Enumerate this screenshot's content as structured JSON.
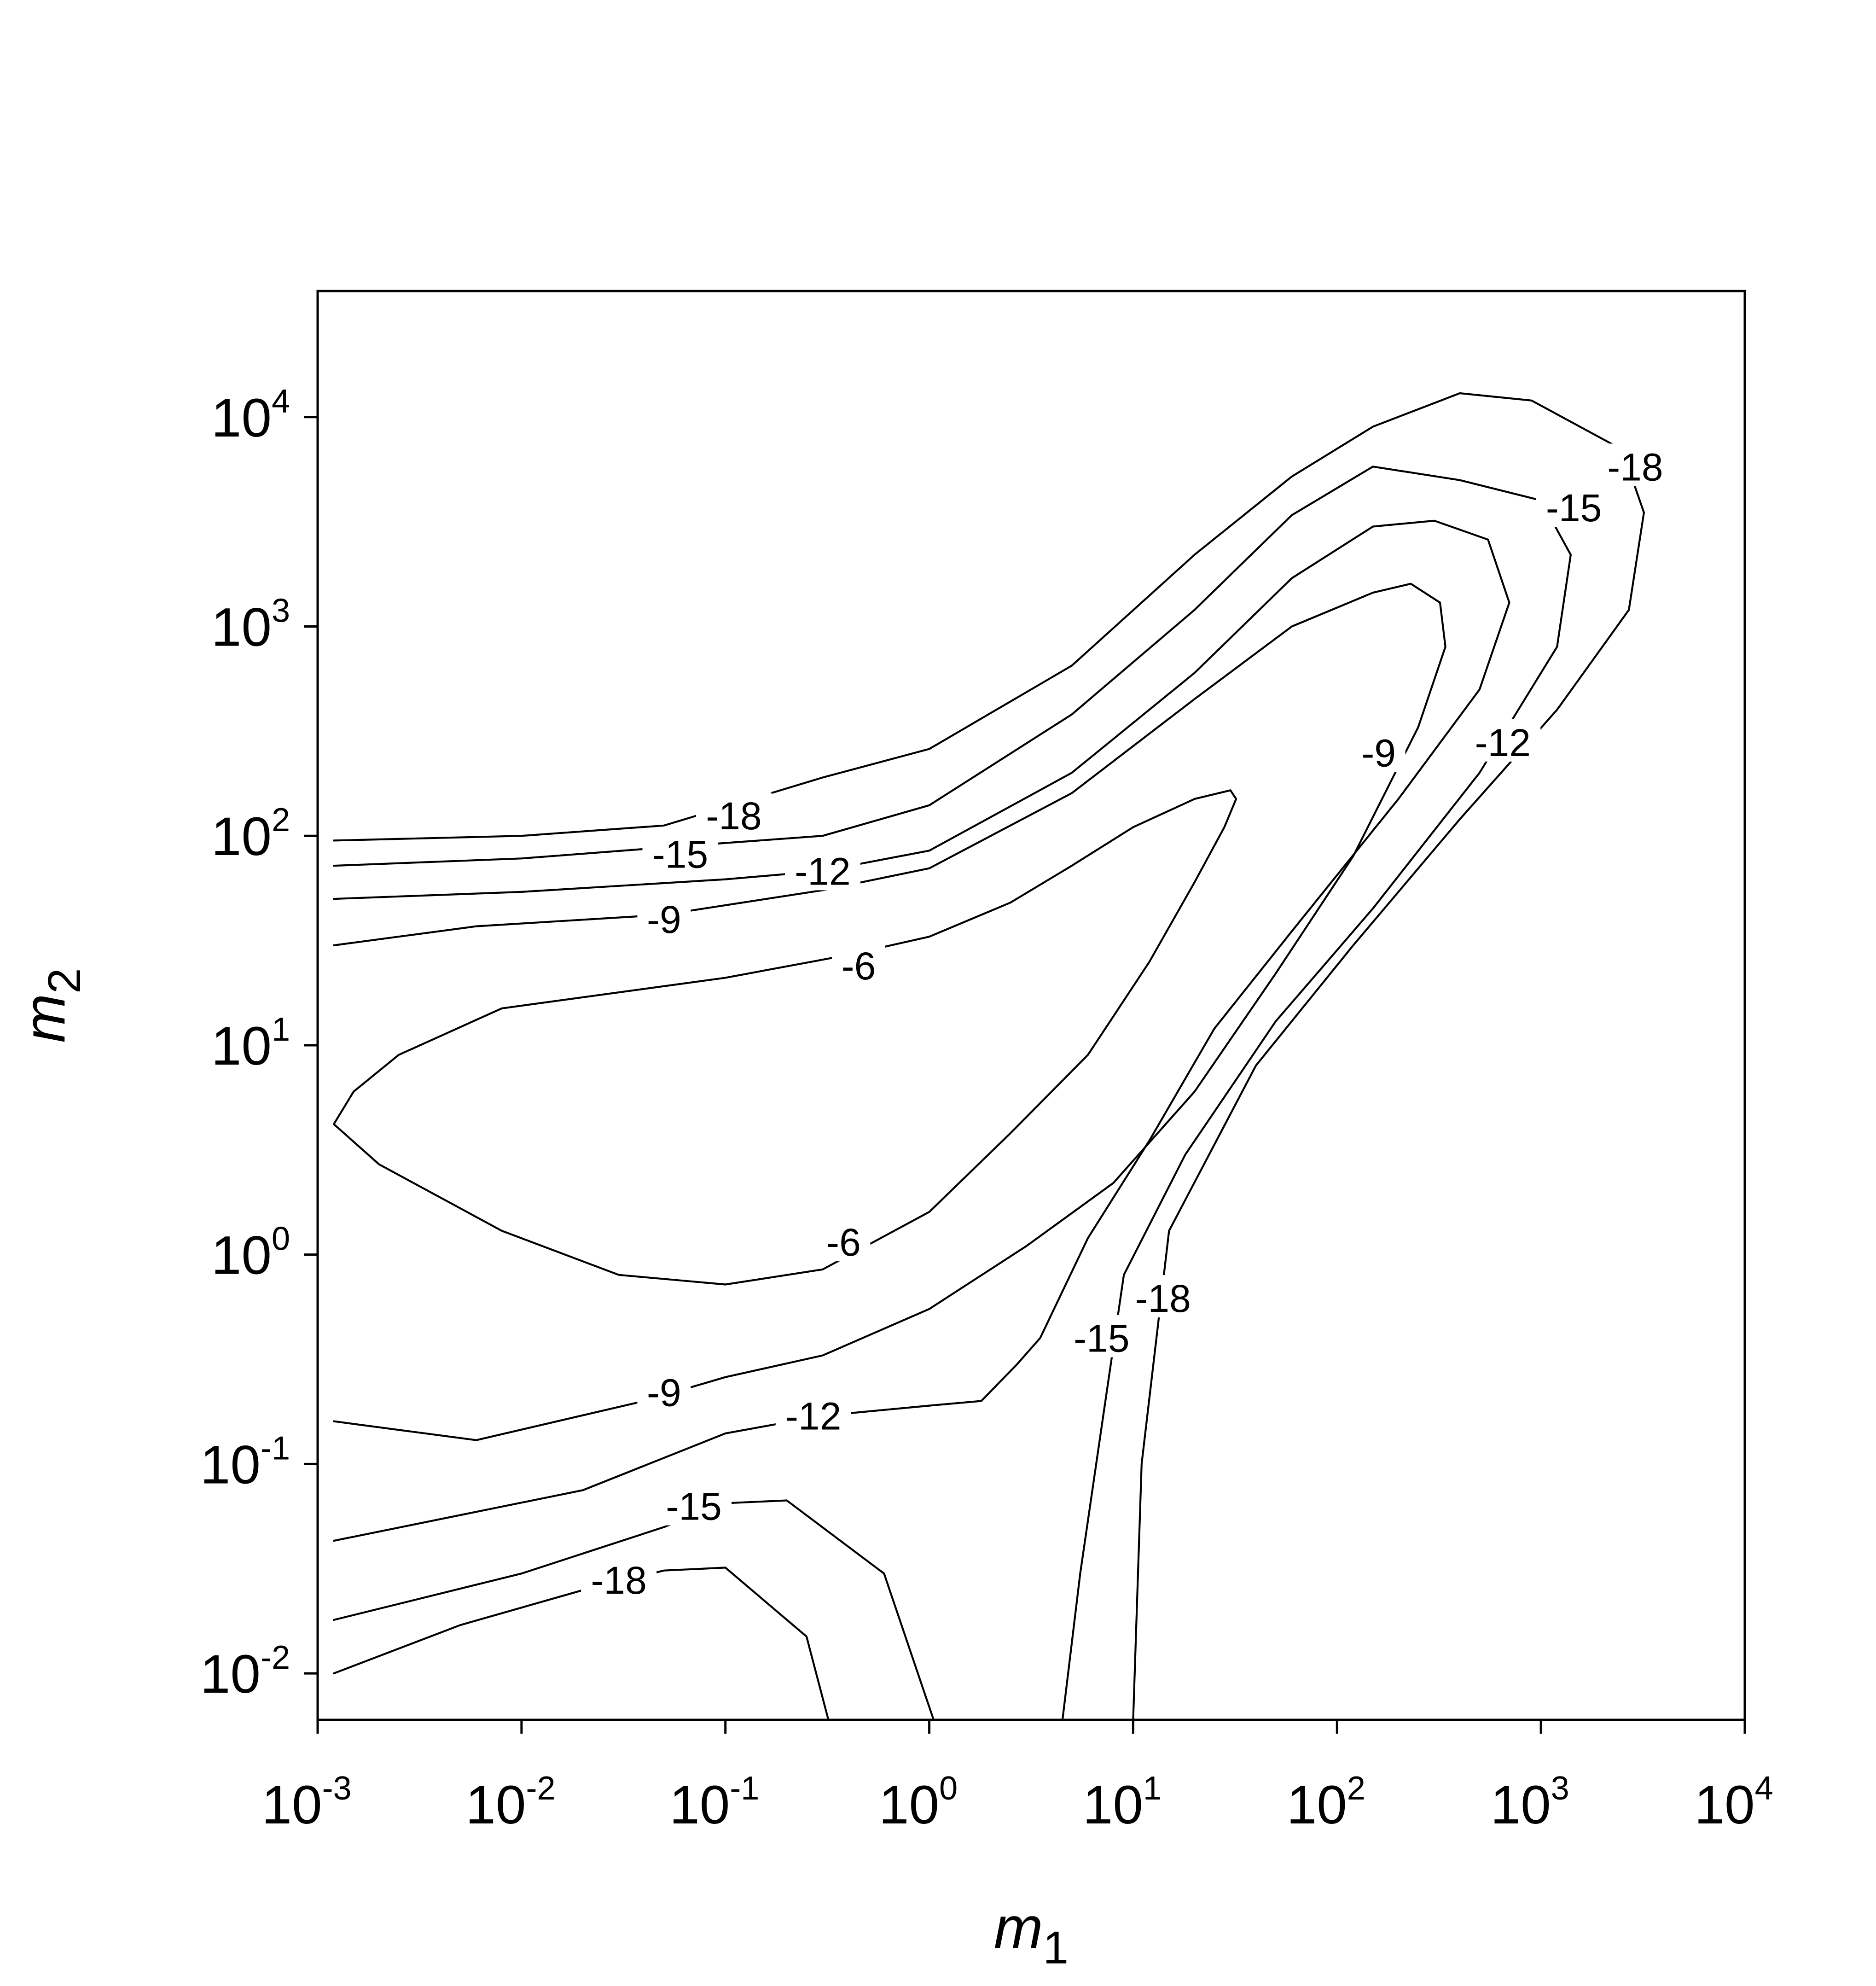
{
  "chart_data": {
    "type": "contour",
    "title": "",
    "xlabel": "m",
    "xlabel_sub": "1",
    "ylabel": "m",
    "ylabel_sub": "2",
    "xscale": "log",
    "yscale": "log",
    "xlim": [
      0.001,
      10000
    ],
    "ylim": [
      0.006,
      40000
    ],
    "grid": false,
    "xticks": [
      {
        "base": "10",
        "exp": "-3",
        "value": 0.001
      },
      {
        "base": "10",
        "exp": "-2",
        "value": 0.01
      },
      {
        "base": "10",
        "exp": "-1",
        "value": 0.1
      },
      {
        "base": "10",
        "exp": "0",
        "value": 1
      },
      {
        "base": "10",
        "exp": "1",
        "value": 10
      },
      {
        "base": "10",
        "exp": "2",
        "value": 100
      },
      {
        "base": "10",
        "exp": "3",
        "value": 1000
      },
      {
        "base": "10",
        "exp": "4",
        "value": 10000
      }
    ],
    "yticks": [
      {
        "base": "10",
        "exp": "-2",
        "value": 0.01
      },
      {
        "base": "10",
        "exp": "-1",
        "value": 0.1
      },
      {
        "base": "10",
        "exp": "0",
        "value": 1
      },
      {
        "base": "10",
        "exp": "1",
        "value": 10
      },
      {
        "base": "10",
        "exp": "2",
        "value": 100
      },
      {
        "base": "10",
        "exp": "3",
        "value": 1000
      },
      {
        "base": "10",
        "exp": "4",
        "value": 10000
      }
    ],
    "contours": [
      {
        "level": -6,
        "closed": true,
        "points": [
          [
            0.0012,
            4.2
          ],
          [
            0.0015,
            6
          ],
          [
            0.0025,
            9
          ],
          [
            0.008,
            15
          ],
          [
            0.1,
            21
          ],
          [
            0.4,
            27
          ],
          [
            1,
            33
          ],
          [
            2.5,
            48
          ],
          [
            5,
            72
          ],
          [
            10,
            110
          ],
          [
            20,
            150
          ],
          [
            30,
            165
          ],
          [
            32,
            150
          ],
          [
            28,
            110
          ],
          [
            20,
            60
          ],
          [
            12,
            25
          ],
          [
            6,
            9
          ],
          [
            2.5,
            3.8
          ],
          [
            1,
            1.6
          ],
          [
            0.3,
            0.85
          ],
          [
            0.1,
            0.72
          ],
          [
            0.03,
            0.8
          ],
          [
            0.008,
            1.3
          ],
          [
            0.002,
            2.7
          ],
          [
            0.0012,
            4.2
          ]
        ]
      },
      {
        "level": -9,
        "closed": false,
        "points": [
          [
            0.0012,
            30
          ],
          [
            0.006,
            37
          ],
          [
            0.05,
            42
          ],
          [
            0.3,
            55
          ],
          [
            1,
            70
          ],
          [
            5,
            160
          ],
          [
            20,
            450
          ],
          [
            60,
            1000
          ],
          [
            150,
            1450
          ],
          [
            230,
            1600
          ],
          [
            320,
            1300
          ],
          [
            340,
            800
          ],
          [
            250,
            330
          ],
          [
            120,
            80
          ],
          [
            50,
            22
          ],
          [
            20,
            6
          ],
          [
            8,
            2.2
          ],
          [
            3,
            1.1
          ],
          [
            1,
            0.55
          ],
          [
            0.3,
            0.33
          ],
          [
            0.1,
            0.26
          ],
          [
            0.04,
            0.2
          ],
          [
            0.006,
            0.13
          ],
          [
            0.0012,
            0.16
          ]
        ]
      },
      {
        "level": -12,
        "closed": false,
        "points": [
          [
            0.0012,
            50
          ],
          [
            0.01,
            54
          ],
          [
            0.1,
            62
          ],
          [
            0.3,
            68
          ],
          [
            1,
            85
          ],
          [
            5,
            200
          ],
          [
            20,
            600
          ],
          [
            60,
            1700
          ],
          [
            150,
            3000
          ],
          [
            300,
            3200
          ],
          [
            550,
            2600
          ],
          [
            700,
            1300
          ],
          [
            500,
            500
          ],
          [
            200,
            150
          ],
          [
            60,
            35
          ],
          [
            25,
            12
          ],
          [
            12,
            3.5
          ],
          [
            6,
            1.2
          ],
          [
            3.5,
            0.4
          ],
          [
            2.7,
            0.3
          ],
          [
            1.8,
            0.2
          ],
          [
            1,
            0.19
          ],
          [
            0.3,
            0.17
          ],
          [
            0.1,
            0.14
          ],
          [
            0.02,
            0.075
          ],
          [
            0.0012,
            0.043
          ]
        ]
      },
      {
        "level": -15,
        "closed": false,
        "points": [
          [
            0.0012,
            72
          ],
          [
            0.01,
            78
          ],
          [
            0.05,
            88
          ],
          [
            0.3,
            100
          ],
          [
            1,
            140
          ],
          [
            5,
            380
          ],
          [
            20,
            1200
          ],
          [
            60,
            3400
          ],
          [
            150,
            5800
          ],
          [
            400,
            5000
          ],
          [
            1000,
            4000
          ],
          [
            1400,
            2200
          ],
          [
            1200,
            800
          ],
          [
            500,
            200
          ],
          [
            150,
            45
          ],
          [
            50,
            13
          ],
          [
            18,
            3
          ],
          [
            9,
            0.8
          ],
          [
            7,
            0.15
          ],
          [
            5.5,
            0.03
          ],
          [
            4.5,
            0.006
          ],
          [
            1.05,
            0.006
          ],
          [
            0.6,
            0.03
          ],
          [
            0.2,
            0.067
          ],
          [
            0.1,
            0.065
          ],
          [
            0.05,
            0.05
          ],
          [
            0.01,
            0.03
          ],
          [
            0.0012,
            0.018
          ]
        ]
      },
      {
        "level": -18,
        "closed": false,
        "points": [
          [
            0.0012,
            95
          ],
          [
            0.01,
            100
          ],
          [
            0.05,
            112
          ],
          [
            0.3,
            190
          ],
          [
            1,
            260
          ],
          [
            5,
            650
          ],
          [
            20,
            2200
          ],
          [
            60,
            5200
          ],
          [
            150,
            9000
          ],
          [
            400,
            13000
          ],
          [
            900,
            12000
          ],
          [
            2500,
            7000
          ],
          [
            3200,
            3500
          ],
          [
            2700,
            1200
          ],
          [
            1200,
            400
          ],
          [
            400,
            120
          ],
          [
            120,
            30
          ],
          [
            40,
            8
          ],
          [
            15,
            1.3
          ],
          [
            11,
            0.1
          ],
          [
            10,
            0.006
          ],
          [
            0.32,
            0.006
          ],
          [
            0.25,
            0.015
          ],
          [
            0.1,
            0.032
          ],
          [
            0.05,
            0.031
          ],
          [
            0.02,
            0.025
          ],
          [
            0.005,
            0.017
          ],
          [
            0.0012,
            0.01
          ]
        ]
      }
    ],
    "contour_labels": [
      {
        "text": "-6",
        "x": 0.45,
        "y": 24
      },
      {
        "text": "-6",
        "x": 0.38,
        "y": 1.15
      },
      {
        "text": "-9",
        "x": 0.05,
        "y": 40
      },
      {
        "text": "-9",
        "x": 0.05,
        "y": 0.22
      },
      {
        "text": "-9",
        "x": 160,
        "y": 250
      },
      {
        "text": "-12",
        "x": 0.3,
        "y": 68
      },
      {
        "text": "-12",
        "x": 0.27,
        "y": 0.17
      },
      {
        "text": "-12",
        "x": 650,
        "y": 280
      },
      {
        "text": "-15",
        "x": 0.06,
        "y": 82
      },
      {
        "text": "-15",
        "x": 0.07,
        "y": 0.063
      },
      {
        "text": "-15",
        "x": 1450,
        "y": 3700
      },
      {
        "text": "-15",
        "x": 7,
        "y": 0.4
      },
      {
        "text": "-18",
        "x": 0.11,
        "y": 125
      },
      {
        "text": "-18",
        "x": 0.03,
        "y": 0.028
      },
      {
        "text": "-18",
        "x": 2900,
        "y": 5800
      },
      {
        "text": "-18",
        "x": 14,
        "y": 0.62
      }
    ]
  }
}
